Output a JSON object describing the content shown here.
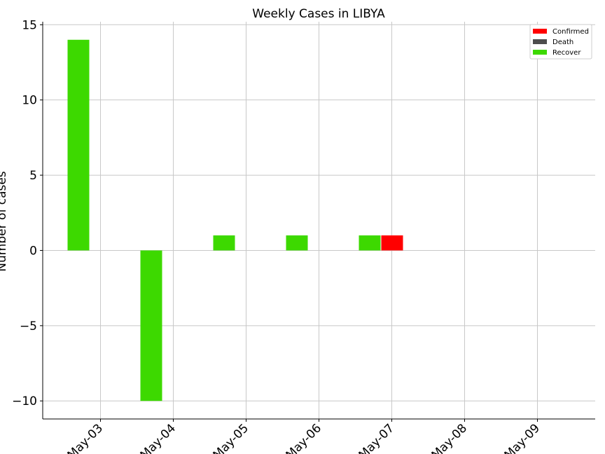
{
  "chart_data": {
    "type": "bar",
    "title": "Weekly Cases in LIBYA",
    "ylabel": "Number of cases",
    "xlabel": "",
    "categories": [
      "May-03",
      "May-04",
      "May-05",
      "May-06",
      "May-07",
      "May-08",
      "May-09"
    ],
    "ylim": [
      -11.2,
      15.2
    ],
    "yticks": [
      -10,
      -5,
      0,
      5,
      10,
      15
    ],
    "grid": true,
    "legend_position": "top-right",
    "series": [
      {
        "name": "Confirmed",
        "color": "#ff0000",
        "values": [
          0,
          0,
          0,
          0,
          1,
          0,
          0
        ]
      },
      {
        "name": "Death",
        "color": "#4d4d4d",
        "values": [
          0,
          0,
          0,
          0,
          0,
          0,
          0
        ]
      },
      {
        "name": "Recover",
        "color": "#3dd900",
        "values": [
          14,
          -10,
          1,
          1,
          1,
          0,
          0
        ]
      }
    ]
  }
}
